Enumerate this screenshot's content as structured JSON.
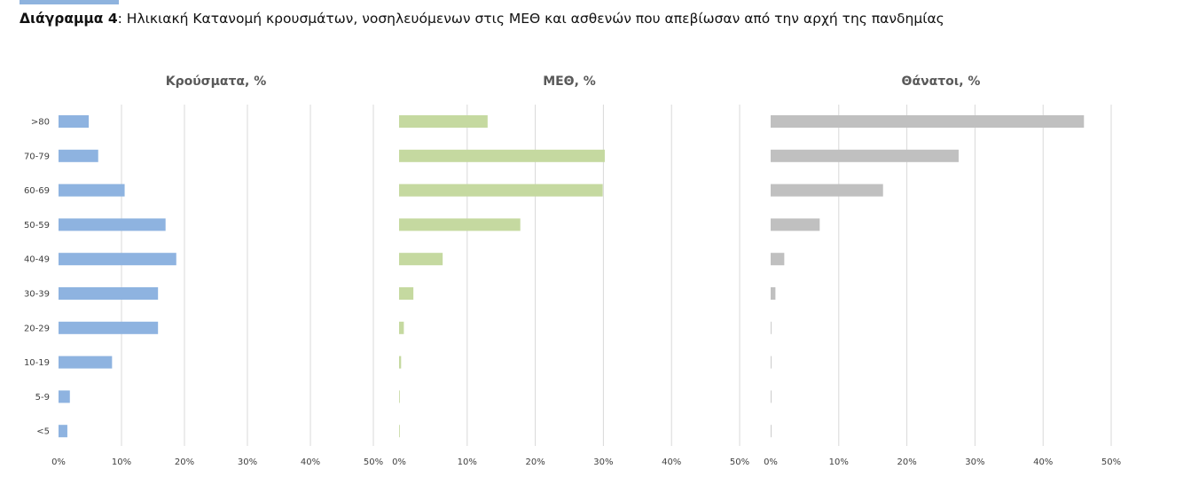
{
  "caption": {
    "label": "Διάγραμμα 4",
    "separator": ": ",
    "text": "Ηλικιακή Κατανομή κρουσμάτων, νοσηλευόμενων στις ΜΕΘ και ασθενών που απεβίωσαν από την αρχή της πανδημίας"
  },
  "chart_data": [
    {
      "type": "bar",
      "orientation": "horizontal",
      "title": "Κρούσματα, %",
      "categories": [
        ">80",
        "70-79",
        "60-69",
        "50-59",
        "40-49",
        "30-39",
        "20-29",
        "10-19",
        "5-9",
        "<5"
      ],
      "values": [
        4.8,
        6.3,
        10.5,
        17.0,
        18.7,
        15.8,
        15.8,
        8.5,
        1.8,
        1.4
      ],
      "xlim": [
        0,
        50
      ],
      "xticks": [
        "0%",
        "10%",
        "20%",
        "30%",
        "40%",
        "50%"
      ],
      "grid": true,
      "color": "#8eb3e0"
    },
    {
      "type": "bar",
      "orientation": "horizontal",
      "title": "ΜΕΘ, %",
      "categories": [
        ">80",
        "70-79",
        "60-69",
        "50-59",
        "40-49",
        "30-39",
        "20-29",
        "10-19",
        "5-9",
        "<5"
      ],
      "values": [
        13.0,
        30.2,
        29.9,
        17.8,
        6.4,
        2.1,
        0.7,
        0.3,
        0.1,
        0.1
      ],
      "xlim": [
        0,
        50
      ],
      "xticks": [
        "0%",
        "10%",
        "20%",
        "30%",
        "40%",
        "50%"
      ],
      "grid": true,
      "color": "#c5d9a0"
    },
    {
      "type": "bar",
      "orientation": "horizontal",
      "title": "Θάνατοι, %",
      "categories": [
        ">80",
        "70-79",
        "60-69",
        "50-59",
        "40-49",
        "30-39",
        "20-29",
        "10-19",
        "5-9",
        "<5"
      ],
      "values": [
        46.0,
        27.6,
        16.5,
        7.2,
        2.0,
        0.7,
        0.1,
        0.1,
        0.0,
        0.1
      ],
      "xlim": [
        0,
        50
      ],
      "xticks": [
        "0%",
        "10%",
        "20%",
        "30%",
        "40%",
        "50%"
      ],
      "grid": true,
      "color": "#c0c0c0"
    }
  ]
}
